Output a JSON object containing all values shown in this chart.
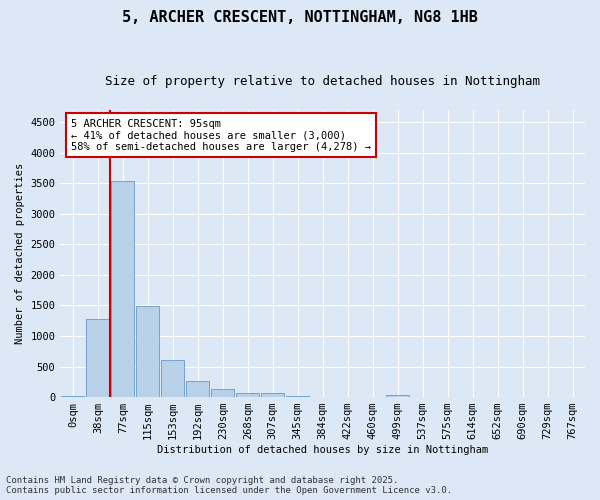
{
  "title": "5, ARCHER CRESCENT, NOTTINGHAM, NG8 1HB",
  "subtitle": "Size of property relative to detached houses in Nottingham",
  "xlabel": "Distribution of detached houses by size in Nottingham",
  "ylabel": "Number of detached properties",
  "bar_color": "#b8d0e8",
  "bar_edge_color": "#6699cc",
  "background_color": "#dce8f5",
  "grid_color": "#ffffff",
  "bin_labels": [
    "0sqm",
    "38sqm",
    "77sqm",
    "115sqm",
    "153sqm",
    "192sqm",
    "230sqm",
    "268sqm",
    "307sqm",
    "345sqm",
    "384sqm",
    "422sqm",
    "460sqm",
    "499sqm",
    "537sqm",
    "575sqm",
    "614sqm",
    "652sqm",
    "690sqm",
    "729sqm",
    "767sqm"
  ],
  "bar_heights": [
    18,
    1280,
    3530,
    1490,
    605,
    260,
    130,
    70,
    60,
    25,
    5,
    0,
    0,
    30,
    0,
    0,
    0,
    0,
    0,
    0,
    0
  ],
  "ylim": [
    0,
    4700
  ],
  "yticks": [
    0,
    500,
    1000,
    1500,
    2000,
    2500,
    3000,
    3500,
    4000,
    4500
  ],
  "vline_color": "#cc0000",
  "annotation_title": "5 ARCHER CRESCENT: 95sqm",
  "annotation_line1": "← 41% of detached houses are smaller (3,000)",
  "annotation_line2": "58% of semi-detached houses are larger (4,278) →",
  "annotation_box_color": "#ffffff",
  "annotation_box_edge": "#cc0000",
  "footnote1": "Contains HM Land Registry data © Crown copyright and database right 2025.",
  "footnote2": "Contains public sector information licensed under the Open Government Licence v3.0.",
  "title_fontsize": 11,
  "subtitle_fontsize": 9,
  "axis_fontsize": 7.5,
  "tick_fontsize": 7.5,
  "annot_fontsize": 7.5,
  "footnote_fontsize": 6.5
}
